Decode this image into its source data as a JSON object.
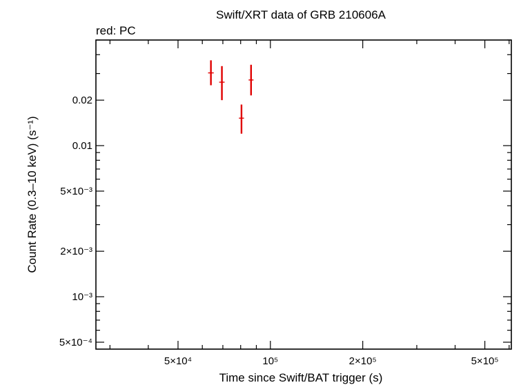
{
  "chart_data": {
    "type": "scatter",
    "title": "Swift/XRT data of GRB 210606A",
    "subtitle": "red: PC",
    "xlabel": "Time since Swift/BAT trigger (s)",
    "ylabel": "Count Rate (0.3–10 keV) (s⁻¹)",
    "xscale": "log",
    "yscale": "log",
    "xlim": [
      27000,
      610000
    ],
    "ylim": [
      0.00045,
      0.05
    ],
    "x_ticks": [
      {
        "value": 50000,
        "label": "5×10⁴"
      },
      {
        "value": 100000,
        "label": "10⁵"
      },
      {
        "value": 200000,
        "label": "2×10⁵"
      },
      {
        "value": 500000,
        "label": "5×10⁵"
      }
    ],
    "y_ticks": [
      {
        "value": 0.02,
        "label": "0.02"
      },
      {
        "value": 0.01,
        "label": "0.01"
      },
      {
        "value": 0.005,
        "label": "5×10⁻³"
      },
      {
        "value": 0.002,
        "label": "2×10⁻³"
      },
      {
        "value": 0.001,
        "label": "10⁻³"
      },
      {
        "value": 0.0005,
        "label": "5×10⁻⁴"
      }
    ],
    "grid": false,
    "series": [
      {
        "color": "#e00000",
        "points": [
          {
            "x": 64000,
            "y": 0.0303,
            "yerr_low": 0.0052,
            "yerr_high": 0.0064,
            "xerr_low": 700,
            "xerr_high": 700
          },
          {
            "x": 69500,
            "y": 0.0263,
            "yerr_low": 0.0063,
            "yerr_high": 0.0073,
            "xerr_low": 700,
            "xerr_high": 700
          },
          {
            "x": 80500,
            "y": 0.0152,
            "yerr_low": 0.0032,
            "yerr_high": 0.0035,
            "xerr_low": 700,
            "xerr_high": 700
          },
          {
            "x": 86500,
            "y": 0.0272,
            "yerr_low": 0.0057,
            "yerr_high": 0.0071,
            "xerr_low": 700,
            "xerr_high": 700
          }
        ]
      }
    ]
  }
}
